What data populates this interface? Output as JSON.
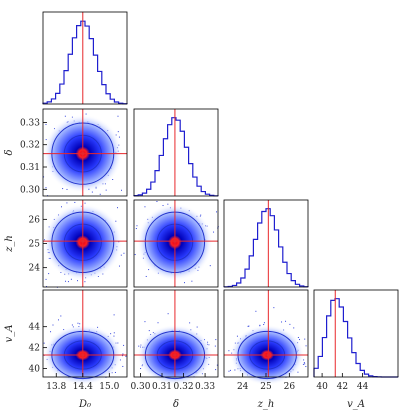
{
  "chart_data": {
    "type": "corner",
    "parameters": [
      {
        "label": "D₀",
        "truth": 14.4,
        "range": [
          13.5,
          15.4
        ],
        "ticks": [
          "13.8",
          "14.4",
          "15.0"
        ],
        "tick_values": [
          13.8,
          14.4,
          15.0
        ],
        "center": 14.4,
        "sigma": 0.28
      },
      {
        "label": "δ",
        "truth": 0.316,
        "range": [
          0.297,
          0.336
        ],
        "ticks": [
          "0.30",
          "0.31",
          "0.32",
          "0.33"
        ],
        "tick_values": [
          0.3,
          0.31,
          0.32,
          0.33
        ],
        "center": 0.316,
        "sigma": 0.0055
      },
      {
        "label": "z_h",
        "truth": 25.1,
        "range": [
          23.2,
          26.8
        ],
        "ticks": [
          "24",
          "25",
          "26"
        ],
        "tick_values": [
          24,
          25,
          26
        ],
        "center": 25.05,
        "sigma": 0.5
      },
      {
        "label": "v_A",
        "truth": 41.3,
        "range": [
          39.2,
          47.5
        ],
        "ticks": [
          "40",
          "42",
          "44"
        ],
        "tick_values": [
          40,
          42,
          44
        ],
        "center": 41.3,
        "sigma": 0.9
      }
    ],
    "histogram_color": "#1f1fcf",
    "truth_color": "#e8272b",
    "contour_color": "#2233cc",
    "density_colors": [
      "#ffffff",
      "#a0b4ff",
      "#2a3cff",
      "#0000b8",
      "#e0001a"
    ],
    "contour_levels": [
      "1σ",
      "2σ"
    ],
    "grid": false
  }
}
